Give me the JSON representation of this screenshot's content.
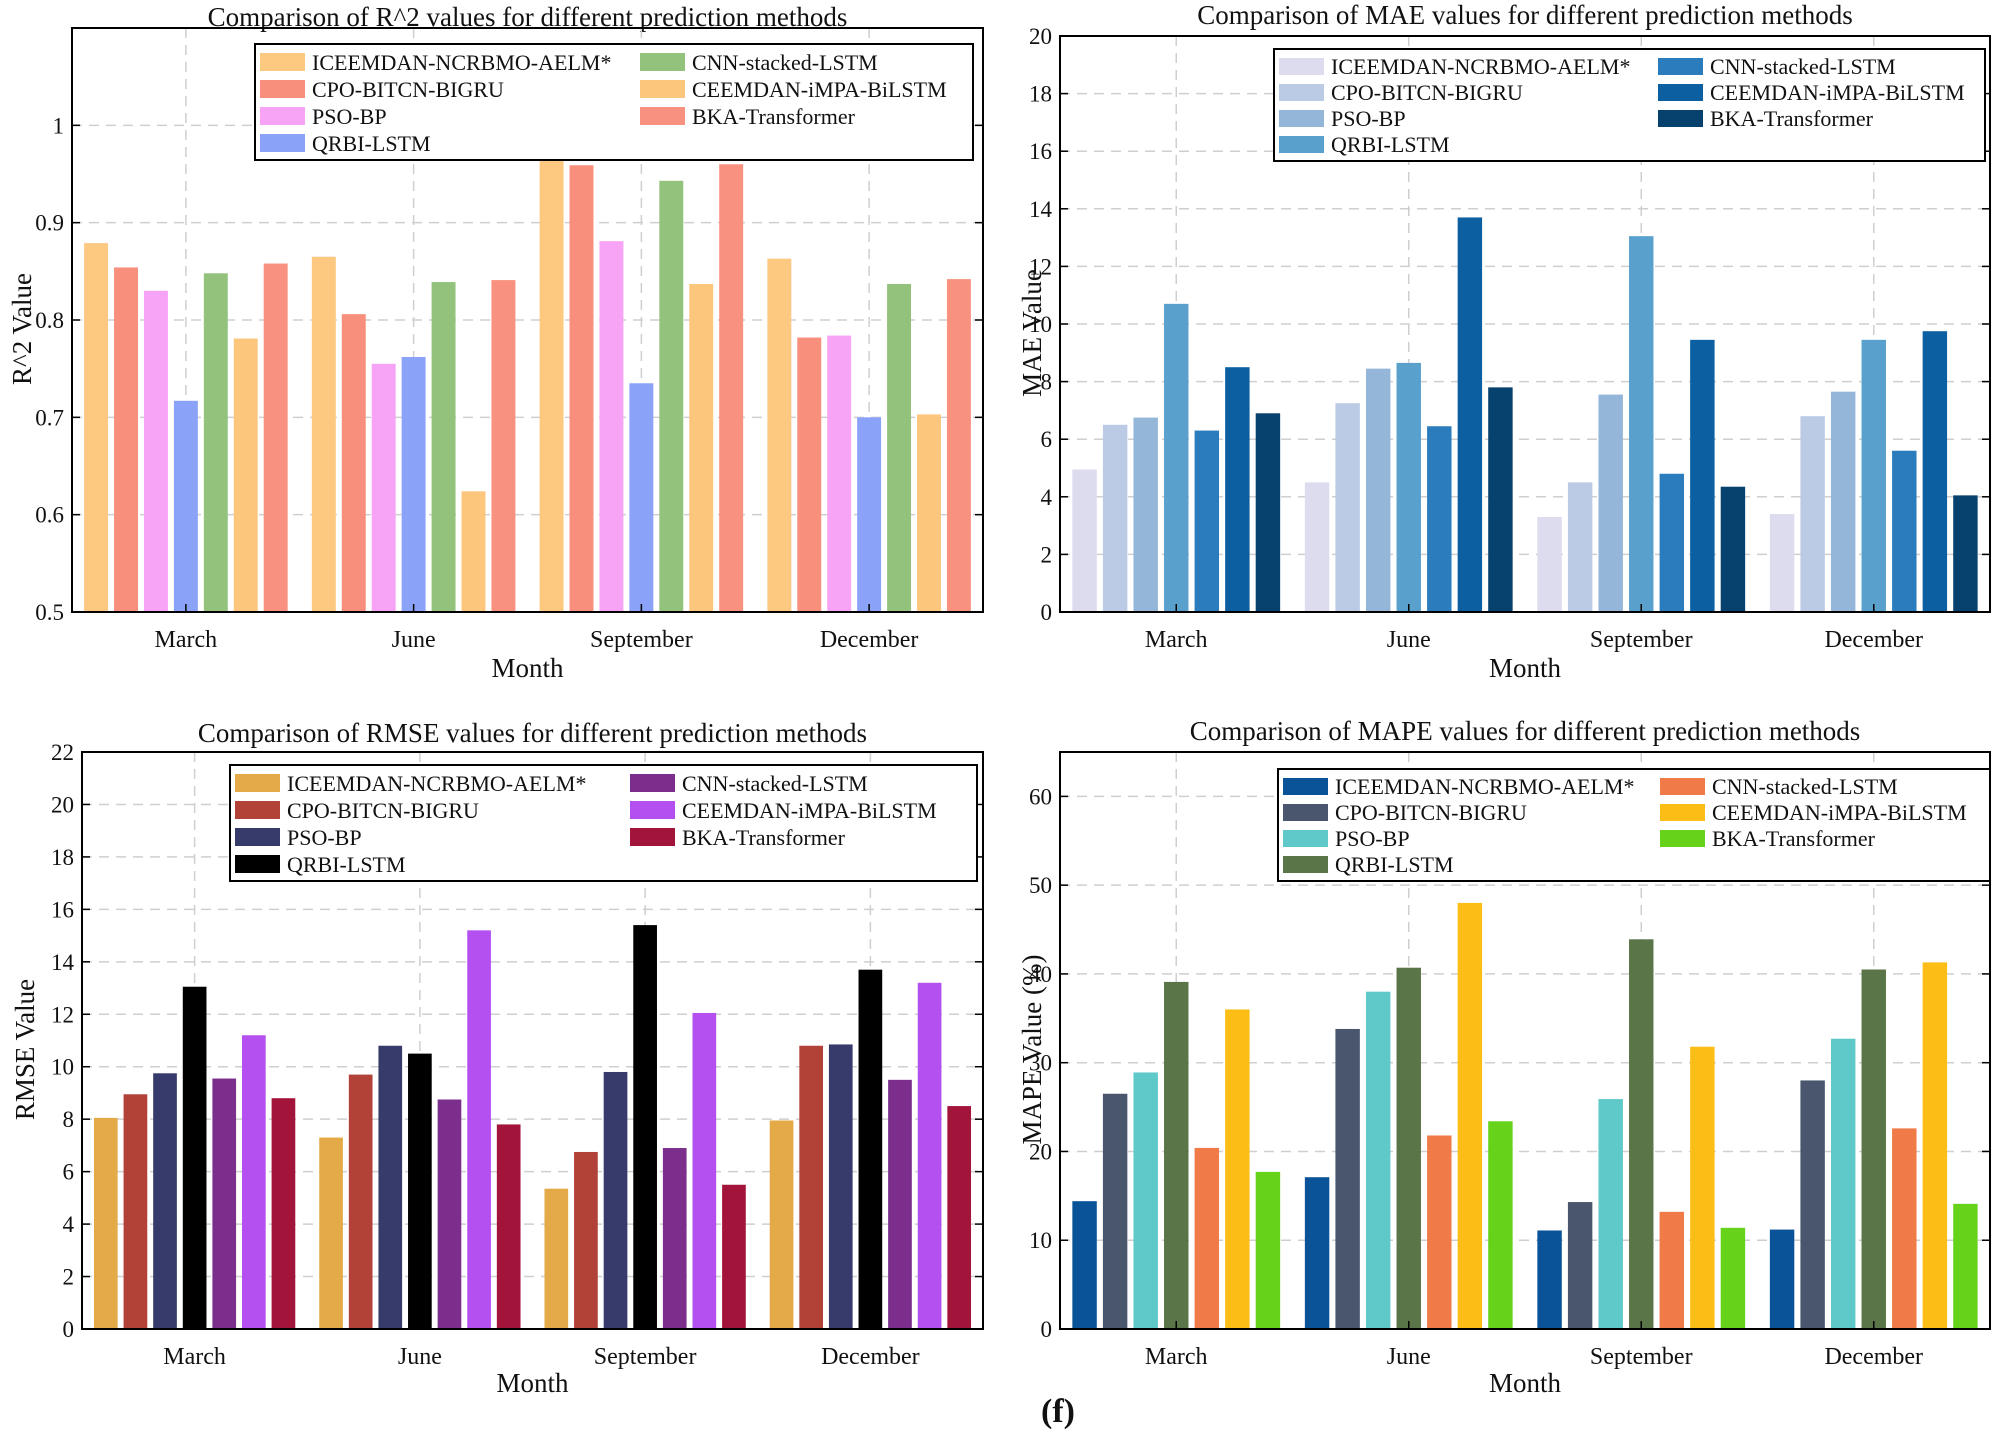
{
  "figure_label": "(f)",
  "chart_data": [
    {
      "type": "bar",
      "title": "Comparison of R^2 values for different prediction methods",
      "xlabel": "Month",
      "ylabel": "R^2 Value",
      "categories": [
        "March",
        "June",
        "September",
        "December"
      ],
      "ylim": [
        0.5,
        1.1
      ],
      "yticks": [
        0.5,
        0.6,
        0.7,
        0.8,
        0.9,
        1
      ],
      "ytick_labels": [
        "0.5",
        "0.6",
        "0.7",
        "0.8",
        "0.9",
        "1"
      ],
      "grid": true,
      "legend_position": "top",
      "series": [
        {
          "name": "ICEEMDAN-NCRBMO-AELM*",
          "color": "#fdc981",
          "values": [
            0.879,
            0.865,
            0.966,
            0.863
          ]
        },
        {
          "name": "CPO-BITCN-BIGRU",
          "color": "#f88e7c",
          "values": [
            0.854,
            0.806,
            0.959,
            0.782
          ]
        },
        {
          "name": "PSO-BP",
          "color": "#f7a4f7",
          "values": [
            0.83,
            0.755,
            0.881,
            0.784
          ]
        },
        {
          "name": "QRBI-LSTM",
          "color": "#8aa2f7",
          "values": [
            0.717,
            0.762,
            0.735,
            0.7
          ]
        },
        {
          "name": "CNN-stacked-LSTM",
          "color": "#93c27c",
          "values": [
            0.848,
            0.839,
            0.943,
            0.837
          ]
        },
        {
          "name": "CEEMDAN-iMPA-BiLSTM",
          "color": "#fcc77c",
          "values": [
            0.781,
            0.624,
            0.837,
            0.703
          ]
        },
        {
          "name": "BKA-Transformer",
          "color": "#f8917f",
          "values": [
            0.858,
            0.841,
            0.96,
            0.842
          ]
        }
      ]
    },
    {
      "type": "bar",
      "title": "Comparison of MAE values for different prediction methods",
      "xlabel": "Month",
      "ylabel": "MAE Value",
      "categories": [
        "March",
        "June",
        "September",
        "December"
      ],
      "ylim": [
        0,
        20
      ],
      "yticks": [
        0,
        2,
        4,
        6,
        8,
        10,
        12,
        14,
        16,
        18,
        20
      ],
      "ytick_labels": [
        "0",
        "2",
        "4",
        "6",
        "8",
        "10",
        "12",
        "14",
        "16",
        "18",
        "20"
      ],
      "grid": true,
      "legend_position": "top",
      "series": [
        {
          "name": "ICEEMDAN-NCRBMO-AELM*",
          "color": "#dcdcee",
          "values": [
            4.95,
            4.5,
            3.3,
            3.4
          ]
        },
        {
          "name": "CPO-BITCN-BIGRU",
          "color": "#bccbe5",
          "values": [
            6.5,
            7.25,
            4.5,
            6.8
          ]
        },
        {
          "name": "PSO-BP",
          "color": "#94b6d9",
          "values": [
            6.75,
            8.45,
            7.55,
            7.65
          ]
        },
        {
          "name": "QRBI-LSTM",
          "color": "#5aa0cd",
          "values": [
            10.7,
            8.65,
            13.05,
            9.45
          ]
        },
        {
          "name": "CNN-stacked-LSTM",
          "color": "#2a7cbc",
          "values": [
            6.3,
            6.45,
            4.8,
            5.6
          ]
        },
        {
          "name": "CEEMDAN-iMPA-BiLSTM",
          "color": "#0c60a2",
          "values": [
            8.5,
            13.7,
            9.45,
            9.75
          ]
        },
        {
          "name": "BKA-Transformer",
          "color": "#06426d",
          "values": [
            6.9,
            7.8,
            4.35,
            4.05
          ]
        }
      ]
    },
    {
      "type": "bar",
      "title": "Comparison of RMSE values for different prediction methods",
      "xlabel": "Month",
      "ylabel": "RMSE Value",
      "categories": [
        "March",
        "June",
        "September",
        "December"
      ],
      "ylim": [
        0,
        22
      ],
      "yticks": [
        0,
        2,
        4,
        6,
        8,
        10,
        12,
        14,
        16,
        18,
        20,
        22
      ],
      "ytick_labels": [
        "0",
        "2",
        "4",
        "6",
        "8",
        "10",
        "12",
        "14",
        "16",
        "18",
        "20",
        "22"
      ],
      "grid": true,
      "legend_position": "top",
      "series": [
        {
          "name": "ICEEMDAN-NCRBMO-AELM*",
          "color": "#e4aa47",
          "values": [
            8.05,
            7.3,
            5.35,
            7.95
          ]
        },
        {
          "name": "CPO-BITCN-BIGRU",
          "color": "#b24138",
          "values": [
            8.95,
            9.7,
            6.75,
            10.8
          ]
        },
        {
          "name": "PSO-BP",
          "color": "#373b6b",
          "values": [
            9.75,
            10.8,
            9.8,
            10.85
          ]
        },
        {
          "name": "QRBI-LSTM",
          "color": "#000000",
          "values": [
            13.05,
            10.5,
            15.4,
            13.7
          ]
        },
        {
          "name": "CNN-stacked-LSTM",
          "color": "#7b2e8c",
          "values": [
            9.55,
            8.75,
            6.9,
            9.5
          ]
        },
        {
          "name": "CEEMDAN-iMPA-BiLSTM",
          "color": "#b44ff0",
          "values": [
            11.2,
            15.2,
            12.05,
            13.2
          ]
        },
        {
          "name": "BKA-Transformer",
          "color": "#a3143a",
          "values": [
            8.8,
            7.8,
            5.5,
            8.5
          ]
        }
      ]
    },
    {
      "type": "bar",
      "title": "Comparison of MAPE values for different prediction methods",
      "xlabel": "Month",
      "ylabel": "MAPE Value (%)",
      "categories": [
        "March",
        "June",
        "September",
        "December"
      ],
      "ylim": [
        0,
        65
      ],
      "yticks": [
        0,
        10,
        20,
        30,
        40,
        50,
        60
      ],
      "ytick_labels": [
        "0",
        "10",
        "20",
        "30",
        "40",
        "50",
        "60"
      ],
      "grid": true,
      "legend_position": "top",
      "series": [
        {
          "name": "ICEEMDAN-NCRBMO-AELM*",
          "color": "#0a5398",
          "values": [
            14.4,
            17.1,
            11.1,
            11.2
          ]
        },
        {
          "name": "CPO-BITCN-BIGRU",
          "color": "#4a566d",
          "values": [
            26.5,
            33.8,
            14.3,
            28.0
          ]
        },
        {
          "name": "PSO-BP",
          "color": "#5fc8c8",
          "values": [
            28.9,
            38.0,
            25.9,
            32.7
          ]
        },
        {
          "name": "QRBI-LSTM",
          "color": "#5a7548",
          "values": [
            39.1,
            40.7,
            43.9,
            40.5
          ]
        },
        {
          "name": "CNN-stacked-LSTM",
          "color": "#f07a48",
          "values": [
            20.4,
            21.8,
            13.2,
            22.6
          ]
        },
        {
          "name": "CEEMDAN-iMPA-BiLSTM",
          "color": "#fbbd16",
          "values": [
            36.0,
            48.0,
            31.8,
            41.3
          ]
        },
        {
          "name": "BKA-Transformer",
          "color": "#66d31a",
          "values": [
            17.7,
            23.4,
            11.4,
            14.1
          ]
        }
      ]
    }
  ]
}
